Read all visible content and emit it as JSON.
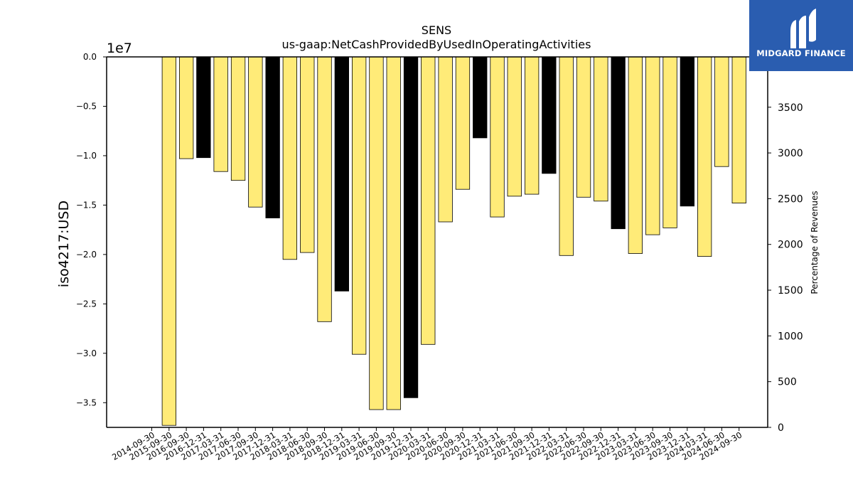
{
  "chart_data": {
    "type": "bar",
    "title": "SENS",
    "subtitle": "us-gaap:NetCashProvidedByUsedInOperatingActivities",
    "ylabel": "iso4217:USD",
    "y_offset_label": "1e7",
    "y2label": "Percentage of Revenues",
    "ylim": [
      -37500000,
      0
    ],
    "y2lim": [
      0,
      4050
    ],
    "yticks": [
      "0.0",
      "−0.5",
      "−1.0",
      "−1.5",
      "−2.0",
      "−2.5",
      "−3.0",
      "−3.5"
    ],
    "y2ticks": [
      "0",
      "500",
      "1000",
      "1500",
      "2000",
      "2500",
      "3000",
      "3500"
    ],
    "categories": [
      "2014-09-30",
      "2015-09-30",
      "2016-09-30",
      "2016-12-31",
      "2017-03-31",
      "2017-06-30",
      "2017-09-30",
      "2017-12-31",
      "2018-03-31",
      "2018-06-30",
      "2018-09-30",
      "2018-12-31",
      "2019-03-31",
      "2019-06-30",
      "2019-09-30",
      "2019-12-31",
      "2020-03-31",
      "2020-06-30",
      "2020-09-30",
      "2020-12-31",
      "2021-03-31",
      "2021-06-30",
      "2021-09-30",
      "2021-12-31",
      "2022-03-31",
      "2022-06-30",
      "2022-09-30",
      "2022-12-31",
      "2023-03-31",
      "2023-06-30",
      "2023-09-30",
      "2023-12-31",
      "2024-03-31",
      "2024-06-30",
      "2024-09-30"
    ],
    "values": [
      null,
      -37300000,
      -10300000,
      -10200000,
      -11600000,
      -12500000,
      -15200000,
      -16300000,
      -20500000,
      -19800000,
      -26800000,
      -23700000,
      -30100000,
      -35700000,
      -35700000,
      -34500000,
      -29100000,
      -16700000,
      -13400000,
      -8200000,
      -16200000,
      -14100000,
      -13900000,
      -11800000,
      -20100000,
      -14200000,
      -14600000,
      -17400000,
      -19900000,
      -18000000,
      -17300000,
      -15100000,
      -20200000,
      -11100000,
      -14800000
    ],
    "bar_colors": [
      "#ffeb78",
      "#ffeb78",
      "#ffeb78",
      "#000000",
      "#ffeb78",
      "#ffeb78",
      "#ffeb78",
      "#000000",
      "#ffeb78",
      "#ffeb78",
      "#ffeb78",
      "#000000",
      "#ffeb78",
      "#ffeb78",
      "#ffeb78",
      "#000000",
      "#ffeb78",
      "#ffeb78",
      "#ffeb78",
      "#000000",
      "#ffeb78",
      "#ffeb78",
      "#ffeb78",
      "#000000",
      "#ffeb78",
      "#ffeb78",
      "#ffeb78",
      "#000000",
      "#ffeb78",
      "#ffeb78",
      "#ffeb78",
      "#000000",
      "#ffeb78",
      "#ffeb78",
      "#ffeb78"
    ],
    "grid": false,
    "legend": "none"
  },
  "logo": {
    "brand_text": "MIDGARD FINANCE",
    "background": "#2a5db0"
  }
}
